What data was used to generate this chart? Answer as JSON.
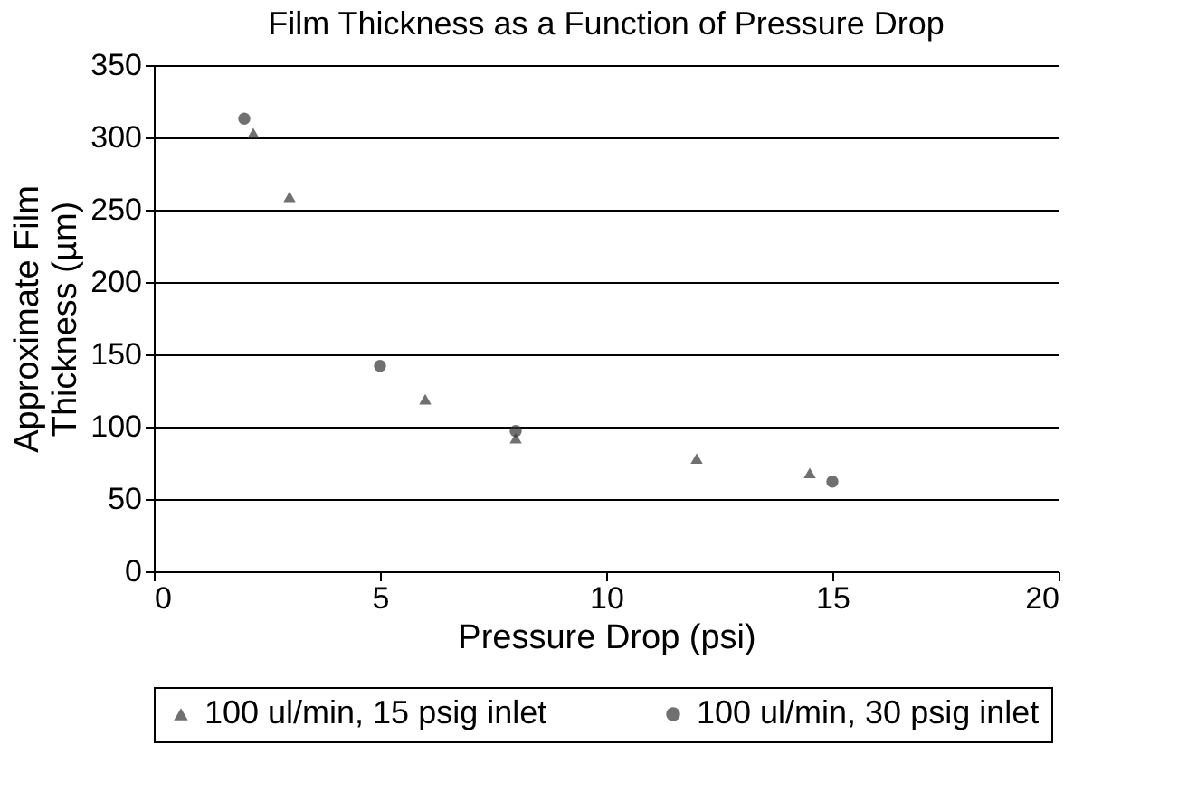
{
  "chart_data": {
    "type": "scatter",
    "title": "Film Thickness as a Function of Pressure Drop",
    "xlabel": "Pressure Drop (psi)",
    "ylabel": "Approximate Film\nThickness (µm)",
    "series": [
      {
        "name": "100 ul/min, 15 psig inlet",
        "color": "#333333",
        "marker": "triangle",
        "x": [
          2.2,
          3,
          6,
          8,
          12,
          14.5
        ],
        "values": [
          303,
          259,
          119,
          92,
          78,
          68
        ]
      },
      {
        "name": "100 ul/min, 30 psig inlet",
        "color": "#333333",
        "marker": "circle",
        "x": [
          2,
          5,
          8,
          15
        ],
        "values": [
          313,
          142,
          97,
          62
        ]
      }
    ],
    "xlim": [
      0,
      20
    ],
    "xticks": [
      0,
      5,
      10,
      15,
      20
    ],
    "ylim": [
      0,
      350
    ],
    "yticks": [
      0,
      50,
      100,
      150,
      200,
      250,
      300,
      350
    ],
    "grid": "y",
    "legend": "bottom"
  }
}
